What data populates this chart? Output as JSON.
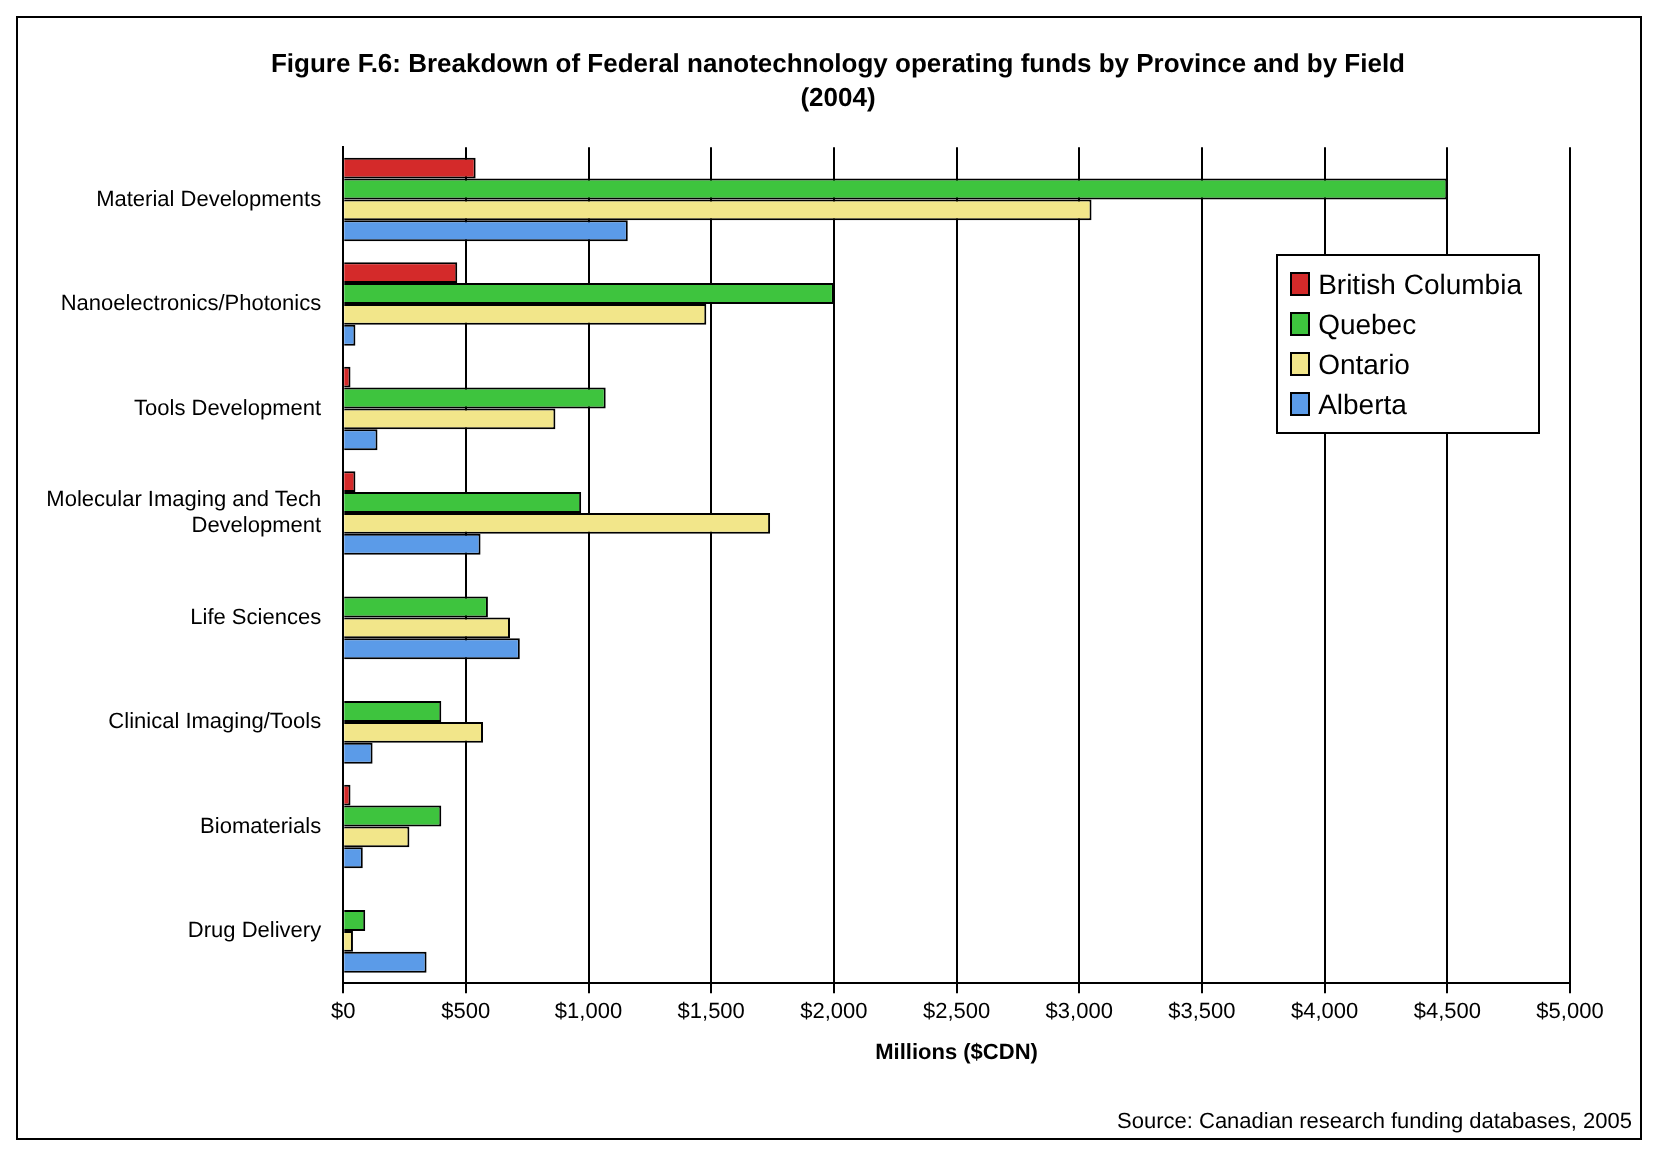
{
  "chart_data": {
    "type": "bar",
    "orientation": "horizontal",
    "title": "Figure F.6: Breakdown of Federal nanotechnology operating funds by Province and by Field (2004)",
    "xlabel": "Millions ($CDN)",
    "categories": [
      "Material Developments",
      "Nanoelectronics/Photonics",
      "Tools Development",
      "Molecular Imaging and Tech Development",
      "Life Sciences",
      "Clinical Imaging/Tools",
      "Biomaterials",
      "Drug Delivery"
    ],
    "series": [
      {
        "name": "British Columbia",
        "color": "#d42a2a",
        "values": [
          540,
          465,
          30,
          50,
          0,
          0,
          30,
          0
        ]
      },
      {
        "name": "Quebec",
        "color": "#3ec43e",
        "values": [
          4500,
          2000,
          1070,
          970,
          590,
          400,
          400,
          90
        ]
      },
      {
        "name": "Ontario",
        "color": "#f2e68a",
        "values": [
          3050,
          1480,
          865,
          1740,
          680,
          570,
          270,
          40
        ]
      },
      {
        "name": "Alberta",
        "color": "#5b9be8",
        "values": [
          1160,
          50,
          140,
          560,
          720,
          120,
          80,
          340
        ]
      }
    ],
    "xlim": [
      0,
      5000
    ],
    "xticks": [
      {
        "value": 0,
        "label": "$0"
      },
      {
        "value": 500,
        "label": "$500"
      },
      {
        "value": 1000,
        "label": "$1,000"
      },
      {
        "value": 1500,
        "label": "$1,500"
      },
      {
        "value": 2000,
        "label": "$2,000"
      },
      {
        "value": 2500,
        "label": "$2,500"
      },
      {
        "value": 3000,
        "label": "$3,000"
      },
      {
        "value": 3500,
        "label": "$3,500"
      },
      {
        "value": 4000,
        "label": "$4,000"
      },
      {
        "value": 4500,
        "label": "$4,500"
      },
      {
        "value": 5000,
        "label": "$5,000"
      }
    ],
    "grid": "x",
    "legend": "top right",
    "annotations": [
      "Source: Canadian research funding databases, 2005"
    ]
  }
}
